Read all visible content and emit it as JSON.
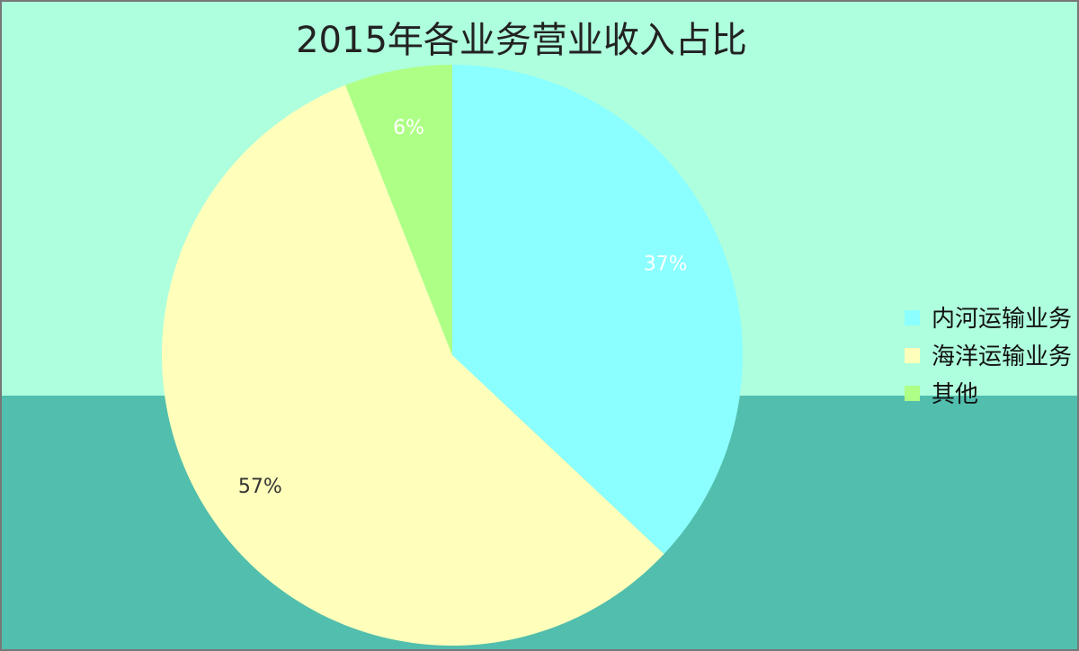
{
  "chart_data": {
    "type": "pie",
    "title": "2015年各业务营业收入占比",
    "categories": [
      "内河运输业务",
      "海洋运输业务",
      "其他"
    ],
    "values": [
      37,
      57,
      6
    ],
    "value_labels": [
      "37%",
      "57%",
      "6%"
    ],
    "colors": [
      "#8BFFFF",
      "#FFFFBB",
      "#AEFF86"
    ],
    "start": "top",
    "direction": "clockwise",
    "legend": {
      "position": "right",
      "entries": [
        "内河运输业务",
        "海洋运输业务",
        "其他"
      ]
    }
  },
  "colors": {
    "background_upper": "#AEFFDD",
    "background_lower": "#52BEAD",
    "legend_text": "#111111"
  }
}
